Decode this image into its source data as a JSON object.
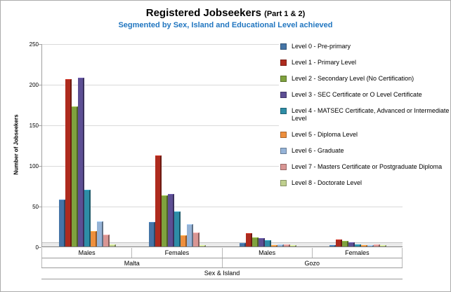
{
  "header": {
    "title": "Registered Jobseekers",
    "part": "(Part 1 & 2)",
    "subtitle": "Segmented by Sex, Island and Educational Level achieved"
  },
  "chart_data": {
    "type": "bar",
    "title": "Registered Jobseekers (Part 1 & 2)",
    "subtitle": "Segmented by Sex, Island and Educational Level achieved",
    "xlabel": "Sex & Island",
    "ylabel": "Number of Jobseekers",
    "ylim": [
      0,
      250
    ],
    "yticks": [
      0,
      50,
      100,
      150,
      200,
      250
    ],
    "grid": true,
    "legend_position": "right",
    "categories": [
      "Males",
      "Females",
      "Males",
      "Females"
    ],
    "island_groups": [
      {
        "label": "Malta",
        "span": 2
      },
      {
        "label": "Gozo",
        "span": 2
      }
    ],
    "series": [
      {
        "name": "Level 0 - Pre-primary",
        "color": "#4575A7",
        "values": [
          58,
          30,
          4,
          2
        ]
      },
      {
        "name": "Level 1 - Primary Level",
        "color": "#AE2B1E",
        "values": [
          206,
          112,
          16,
          9
        ]
      },
      {
        "name": "Level 2 - Secondary Level (No Certification)",
        "color": "#7FA23E",
        "values": [
          172,
          63,
          11,
          7
        ]
      },
      {
        "name": "Level 3 - SEC Certificate or O Level Certificate",
        "color": "#5D4F94",
        "values": [
          208,
          65,
          10,
          5
        ]
      },
      {
        "name": "Level 4 - MATSEC Certificate, Advanced or Intermediate Level",
        "color": "#2E8DA6",
        "values": [
          70,
          43,
          8,
          3
        ]
      },
      {
        "name": "Level 5 - Diploma Level",
        "color": "#EE8F3D",
        "values": [
          19,
          14,
          2,
          2
        ]
      },
      {
        "name": "Level 6 - Graduate",
        "color": "#95B3D7",
        "values": [
          31,
          28,
          3,
          2
        ]
      },
      {
        "name": "Level 7 - Masters Certificate or Postgraduate Diploma",
        "color": "#D99694",
        "values": [
          15,
          17,
          3,
          3
        ]
      },
      {
        "name": "Level 8 - Doctorate Level",
        "color": "#BFCF8E",
        "values": [
          3,
          2,
          1,
          2
        ]
      }
    ]
  }
}
